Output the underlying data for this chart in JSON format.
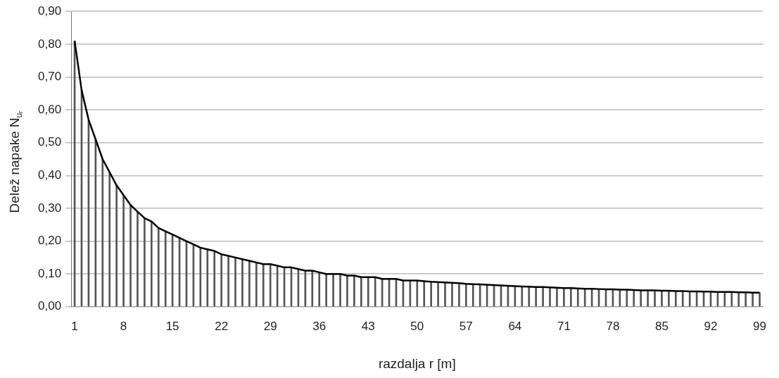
{
  "chart_data": {
    "type": "bar",
    "xlabel": "razdalja r [m]",
    "ylabel": "Delež napake N$_{uᵣ}$",
    "categories": [
      "1",
      null,
      null,
      null,
      null,
      null,
      null,
      "8",
      null,
      null,
      null,
      null,
      null,
      null,
      "15",
      null,
      null,
      null,
      null,
      null,
      null,
      "22",
      null,
      null,
      null,
      null,
      null,
      null,
      "29",
      null,
      null,
      null,
      null,
      null,
      null,
      "36",
      null,
      null,
      null,
      null,
      null,
      null,
      "43",
      null,
      null,
      null,
      null,
      null,
      null,
      "50",
      null,
      null,
      null,
      null,
      null,
      null,
      "57",
      null,
      null,
      null,
      null,
      null,
      null,
      "64",
      null,
      null,
      null,
      null,
      null,
      null,
      "71",
      null,
      null,
      null,
      null,
      null,
      null,
      "78",
      null,
      null,
      null,
      null,
      null,
      null,
      "85",
      null,
      null,
      null,
      null,
      null,
      null,
      "92",
      null,
      null,
      null,
      null,
      null,
      null,
      "99"
    ],
    "series": [
      {
        "color": "#555555",
        "values": [
          0.81,
          0.66,
          0.57,
          0.51,
          0.45,
          0.41,
          0.37,
          0.34,
          0.31,
          0.29,
          0.27,
          0.26,
          0.24,
          0.23,
          0.22,
          0.21,
          0.2,
          0.19,
          0.18,
          0.175,
          0.17,
          0.16,
          0.155,
          0.15,
          0.145,
          0.14,
          0.135,
          0.13,
          0.13,
          0.125,
          0.12,
          0.12,
          0.115,
          0.11,
          0.11,
          0.105,
          0.1,
          0.1,
          0.1,
          0.095,
          0.095,
          0.09,
          0.09,
          0.09,
          0.085,
          0.085,
          0.085,
          0.08,
          0.08,
          0.08,
          0.078,
          0.076,
          0.075,
          0.074,
          0.073,
          0.072,
          0.07,
          0.069,
          0.068,
          0.067,
          0.066,
          0.065,
          0.064,
          0.063,
          0.062,
          0.061,
          0.06,
          0.06,
          0.059,
          0.058,
          0.057,
          0.057,
          0.056,
          0.055,
          0.055,
          0.054,
          0.053,
          0.053,
          0.052,
          0.052,
          0.051,
          0.05,
          0.05,
          0.05,
          0.049,
          0.049,
          0.048,
          0.048,
          0.047,
          0.047,
          0.046,
          0.046,
          0.045,
          0.045,
          0.045,
          0.044,
          0.044,
          0.043,
          0.043
        ]
      },
      {
        "type": "line",
        "color": "#000000",
        "values": [
          0.81,
          0.66,
          0.57,
          0.51,
          0.45,
          0.41,
          0.37,
          0.34,
          0.31,
          0.29,
          0.27,
          0.26,
          0.24,
          0.23,
          0.22,
          0.21,
          0.2,
          0.19,
          0.18,
          0.175,
          0.17,
          0.16,
          0.155,
          0.15,
          0.145,
          0.14,
          0.135,
          0.13,
          0.13,
          0.125,
          0.12,
          0.12,
          0.115,
          0.11,
          0.11,
          0.105,
          0.1,
          0.1,
          0.1,
          0.095,
          0.095,
          0.09,
          0.09,
          0.09,
          0.085,
          0.085,
          0.085,
          0.08,
          0.08,
          0.08,
          0.078,
          0.076,
          0.075,
          0.074,
          0.073,
          0.072,
          0.07,
          0.069,
          0.068,
          0.067,
          0.066,
          0.065,
          0.064,
          0.063,
          0.062,
          0.061,
          0.06,
          0.06,
          0.059,
          0.058,
          0.057,
          0.057,
          0.056,
          0.055,
          0.055,
          0.054,
          0.053,
          0.053,
          0.052,
          0.052,
          0.051,
          0.05,
          0.05,
          0.05,
          0.049,
          0.049,
          0.048,
          0.048,
          0.047,
          0.047,
          0.046,
          0.046,
          0.045,
          0.045,
          0.045,
          0.044,
          0.044,
          0.043,
          0.043
        ]
      }
    ],
    "ylim": [
      0,
      0.9
    ],
    "yticks": [
      {
        "value": 0,
        "label": "0,00"
      },
      {
        "value": 0.1,
        "label": "0,10"
      },
      {
        "value": 0.2,
        "label": "0,20"
      },
      {
        "value": 0.3,
        "label": "0,30"
      },
      {
        "value": 0.4,
        "label": "0,40"
      },
      {
        "value": 0.5,
        "label": "0,50"
      },
      {
        "value": 0.6,
        "label": "0,60"
      },
      {
        "value": 0.7,
        "label": "0,70"
      },
      {
        "value": 0.8,
        "label": "0,80"
      },
      {
        "value": 0.9,
        "label": "0,90"
      }
    ],
    "grid": "y",
    "legend": false
  }
}
